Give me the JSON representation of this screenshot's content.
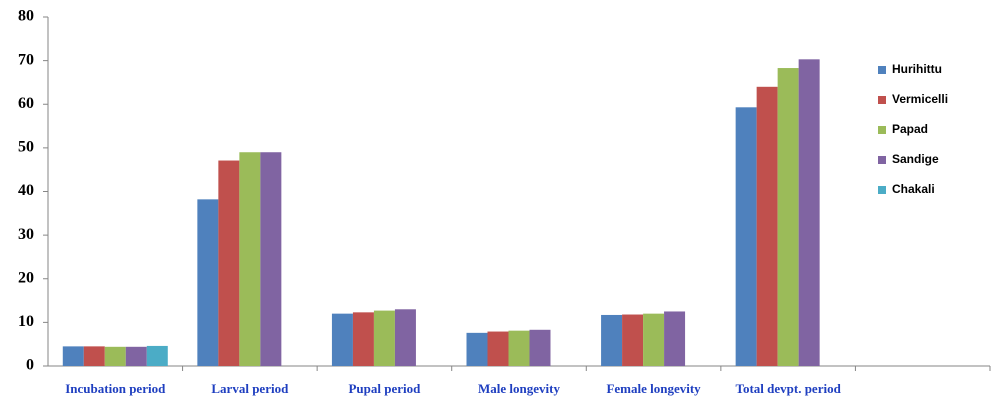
{
  "chart_data": {
    "type": "bar",
    "categories": [
      "Incubation period",
      "Larval period",
      "Pupal period",
      "Male longevity",
      "Female longevity",
      "Total devpt. period",
      null
    ],
    "series": [
      {
        "name": "Hurihittu",
        "color": "#4f81bd",
        "values": [
          4.5,
          38.2,
          12,
          7.6,
          11.7,
          59.3,
          null
        ]
      },
      {
        "name": "Vermicelli",
        "color": "#c0504d",
        "values": [
          4.5,
          47.1,
          12.3,
          7.9,
          11.8,
          64,
          null
        ]
      },
      {
        "name": "Papad",
        "color": "#9bbb59",
        "values": [
          4.4,
          49,
          12.7,
          8.1,
          12,
          68.3,
          null
        ]
      },
      {
        "name": "Sandige",
        "color": "#8064a2",
        "values": [
          4.4,
          49,
          13,
          8.3,
          12.5,
          70.3,
          null
        ]
      },
      {
        "name": "Chakali",
        "color": "#4bacc6",
        "values": [
          4.6,
          null,
          null,
          null,
          null,
          null,
          null
        ]
      }
    ],
    "ylim": [
      0,
      80
    ],
    "yticks": [
      0,
      10,
      20,
      30,
      40,
      50,
      60,
      70,
      80
    ],
    "grid": false,
    "legend": "right"
  }
}
